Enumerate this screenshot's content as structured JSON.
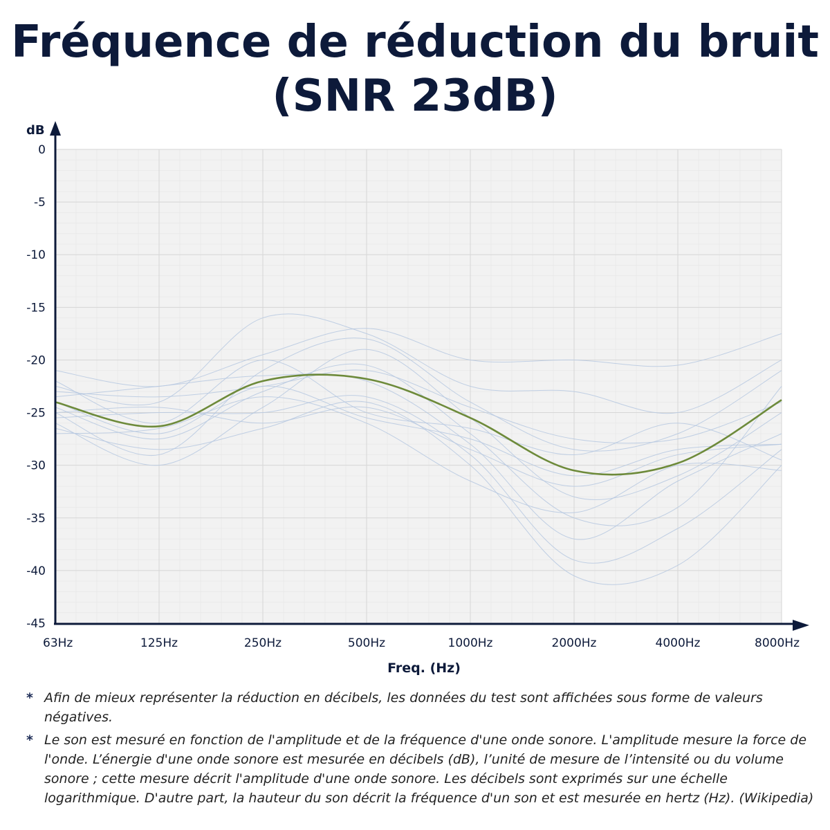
{
  "title_line1": "Fréquence de réduction du bruit",
  "title_line2": "(SNR 23dB)",
  "colors": {
    "axis": "#0d1a3a",
    "main_curve": "#6d8a3a",
    "bg_curves": "#b6c8e0",
    "plot_bg": "#f2f2f2",
    "grid": "#dedede"
  },
  "chart_data": {
    "type": "line",
    "ylabel": "dB",
    "xlabel": "Freq. (Hz)",
    "x": [
      "63Hz",
      "125Hz",
      "250Hz",
      "500Hz",
      "1000Hz",
      "2000Hz",
      "4000Hz",
      "8000Hz"
    ],
    "ylim": [
      -45,
      0
    ],
    "yticks": [
      0,
      -5,
      -10,
      -15,
      -20,
      -25,
      -30,
      -35,
      -40,
      -45
    ],
    "grid": true,
    "series": [
      {
        "values": [
          -24.0,
          -26.3,
          -22.0,
          -21.8,
          -25.5,
          -30.5,
          -29.8,
          -23.8
        ]
      }
    ],
    "background_series": [
      [
        -21.0,
        -22.5,
        -19.5,
        -17.0,
        -20.0,
        -20.0,
        -20.5,
        -17.5
      ],
      [
        -22.5,
        -24.0,
        -16.0,
        -17.5,
        -22.5,
        -23.0,
        -25.0,
        -20.0
      ],
      [
        -25.0,
        -29.0,
        -21.0,
        -18.0,
        -24.0,
        -28.5,
        -27.0,
        -21.0
      ],
      [
        -26.0,
        -30.0,
        -24.5,
        -19.0,
        -25.5,
        -33.0,
        -31.0,
        -25.0
      ],
      [
        -24.5,
        -27.5,
        -23.0,
        -20.5,
        -27.0,
        -35.0,
        -34.0,
        -22.5
      ],
      [
        -23.5,
        -22.5,
        -21.5,
        -22.0,
        -28.0,
        -37.0,
        -31.5,
        -27.0
      ],
      [
        -25.5,
        -25.0,
        -25.0,
        -23.5,
        -29.0,
        -39.0,
        -36.0,
        -28.5
      ],
      [
        -26.5,
        -28.5,
        -26.5,
        -24.0,
        -30.0,
        -40.5,
        -39.5,
        -30.0
      ],
      [
        -22.0,
        -26.0,
        -20.0,
        -25.0,
        -26.5,
        -29.0,
        -26.0,
        -29.5
      ],
      [
        -24.0,
        -27.0,
        -22.5,
        -25.5,
        -27.5,
        -31.0,
        -28.5,
        -28.0
      ],
      [
        -27.0,
        -26.5,
        -23.5,
        -26.0,
        -31.5,
        -34.5,
        -30.0,
        -30.5
      ],
      [
        -25.0,
        -24.5,
        -26.0,
        -24.5,
        -28.5,
        -32.0,
        -29.0,
        -28.0
      ],
      [
        -23.0,
        -23.5,
        -22.5,
        -21.0,
        -24.5,
        -27.5,
        -27.5,
        -24.0
      ]
    ]
  },
  "notes": [
    "Afin de mieux représenter la réduction en décibels, les données du test sont affichées sous forme de valeurs négatives.",
    "Le son est mesuré en fonction de l'amplitude et de la fréquence d'une onde sonore. L'amplitude mesure la force de l'onde. L’énergie d'une onde sonore est mesurée en décibels (dB), l’unité de mesure de l’intensité ou du volume sonore ; cette mesure décrit l'amplitude d'une onde sonore. Les décibels sont exprimés sur une échelle logarithmique. D'autre part, la hauteur du son décrit la fréquence d'un son et est mesurée en hertz (Hz). (Wikipedia)"
  ],
  "note_marker": "*"
}
